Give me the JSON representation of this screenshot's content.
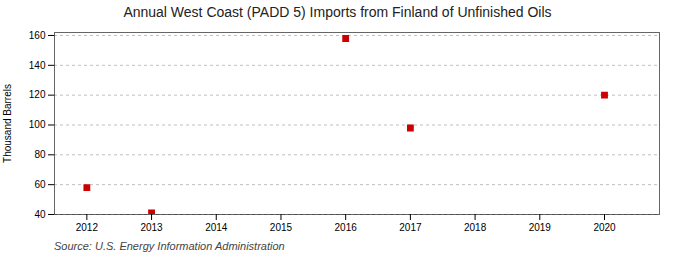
{
  "chart_data": {
    "type": "scatter",
    "title": "Annual West Coast (PADD 5) Imports from Finland of Unfinished Oils",
    "ylabel": "Thousand Barrels",
    "annotations": [
      "Source: U.S. Energy Information Administration"
    ],
    "x": [
      2012,
      2013,
      2016,
      2017,
      2020
    ],
    "values": [
      58,
      41,
      158,
      98,
      120
    ],
    "color": "#cc0000",
    "marker": "square",
    "xlim": [
      2011.5,
      2020.85
    ],
    "ylim": [
      40,
      162
    ],
    "xticks": [
      2012,
      2013,
      2014,
      2015,
      2016,
      2017,
      2018,
      2019,
      2020
    ],
    "yticks": [
      40,
      60,
      80,
      100,
      120,
      140,
      160
    ],
    "grid": true
  }
}
